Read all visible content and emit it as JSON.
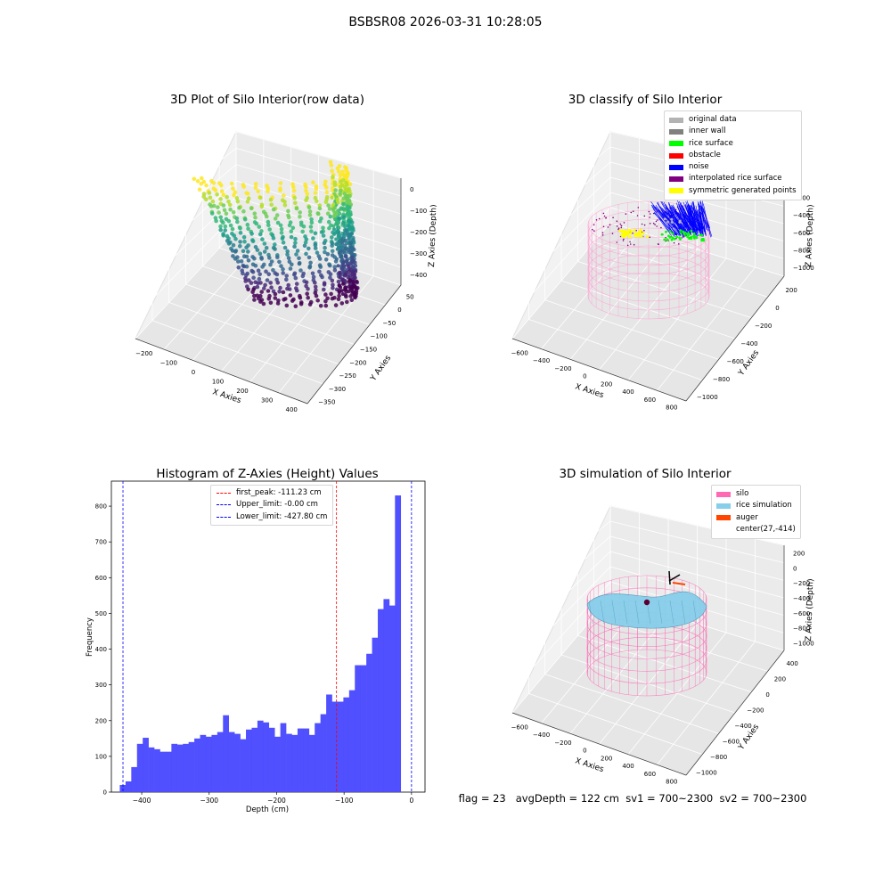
{
  "figure": {
    "suptitle": "BSBSR08 2026-03-31 10:28:05",
    "status_line": "flag = 23   avgDepth = 122 cm  sv1 = 700~2300  sv2 = 700~2300"
  },
  "chart_data": [
    {
      "type": "scatter",
      "projection": "3d",
      "title": "3D Plot of Silo Interior(row data)",
      "xlabel": "X Axies",
      "ylabel": "Y Axies",
      "zlabel": "Z Axies (Depth)",
      "x_ticks": [
        "−200",
        "−100",
        "0",
        "100",
        "200",
        "300",
        "400"
      ],
      "y_ticks": [
        "−350",
        "−300",
        "−250",
        "−200",
        "−150",
        "−100",
        "−50",
        "0",
        "50"
      ],
      "z_ticks": [
        "−400",
        "−300",
        "−200",
        "−100",
        "0"
      ],
      "xlim": [
        -250,
        420
      ],
      "ylim": [
        -370,
        70
      ],
      "zlim": [
        -440,
        10
      ],
      "colormap": "viridis"
    },
    {
      "type": "scatter",
      "projection": "3d",
      "title": "3D classify of Silo Interior",
      "xlabel": "X Axies",
      "ylabel": "Y Axies",
      "zlabel": "Z Axies (Depth)",
      "x_ticks": [
        "−600",
        "−400",
        "−200",
        "0",
        "200",
        "400",
        "600",
        "800"
      ],
      "y_ticks": [
        "−1000",
        "−800",
        "−600",
        "−400",
        "−200",
        "0",
        "200"
      ],
      "z_ticks": [
        "−1000",
        "−800",
        "−600",
        "−400",
        "−200",
        "0"
      ],
      "legend": [
        {
          "label": "original data",
          "color": "#b3b3b3"
        },
        {
          "label": "inner wall",
          "color": "#808080"
        },
        {
          "label": "rice surface",
          "color": "#00ff00"
        },
        {
          "label": "obstacle",
          "color": "#ff0000"
        },
        {
          "label": "noise",
          "color": "#0000ff"
        },
        {
          "label": "interpolated rice surface",
          "color": "#800080"
        },
        {
          "label": "symmetric generated points",
          "color": "#ffff00"
        }
      ],
      "legend_loc": "upper right"
    },
    {
      "type": "bar",
      "subtype": "histogram",
      "title": "Histogram of Z-Axies (Height) Values",
      "xlabel": "Depth (cm)",
      "ylabel": "Frequency",
      "xlim": [
        -445,
        20
      ],
      "ylim": [
        0,
        870
      ],
      "x_ticks": [
        -400,
        -300,
        -200,
        -100,
        0
      ],
      "y_ticks": [
        0,
        100,
        200,
        300,
        400,
        500,
        600,
        700,
        800
      ],
      "bar_color": "#4d4dff",
      "bin_edges_start": -432.5,
      "bin_width": 8.5,
      "values": [
        20,
        30,
        70,
        135,
        152,
        125,
        120,
        113,
        113,
        135,
        133,
        135,
        140,
        150,
        160,
        155,
        160,
        168,
        215,
        168,
        163,
        148,
        175,
        180,
        200,
        195,
        180,
        155,
        193,
        163,
        160,
        178,
        178,
        160,
        193,
        218,
        273,
        253,
        253,
        265,
        285,
        355,
        355,
        387,
        432,
        512,
        540,
        522,
        830
      ],
      "vlines": [
        {
          "label": "first_peak: -111.23 cm",
          "x": -111.23,
          "color": "#ff0000"
        },
        {
          "label": "Upper_limit: -0.00 cm",
          "x": 0.0,
          "color": "#0000ff"
        },
        {
          "label": "Lower_limit: -427.80 cm",
          "x": -427.8,
          "color": "#0000ff"
        }
      ],
      "legend_loc": "upper center"
    },
    {
      "type": "scatter",
      "projection": "3d",
      "title": "3D simulation of Silo Interior",
      "xlabel": "X Axies",
      "ylabel": "Y Axies",
      "zlabel": "Z Axies (Depth)",
      "x_ticks": [
        "−600",
        "−400",
        "−200",
        "0",
        "200",
        "400",
        "600",
        "800"
      ],
      "y_ticks": [
        "−1000",
        "−800",
        "−600",
        "−400",
        "−200",
        "0",
        "200",
        "400"
      ],
      "z_ticks": [
        "−1000",
        "−800",
        "−600",
        "−400",
        "−200",
        "0",
        "200"
      ],
      "legend": [
        {
          "label": "silo",
          "color": "#ff69b4"
        },
        {
          "label": "rice simulation",
          "color": "#87ceeb"
        },
        {
          "label": "auger",
          "color": "#ff4500"
        },
        {
          "label": "center(27,-414)",
          "color": ""
        }
      ],
      "legend_loc": "upper right"
    }
  ]
}
